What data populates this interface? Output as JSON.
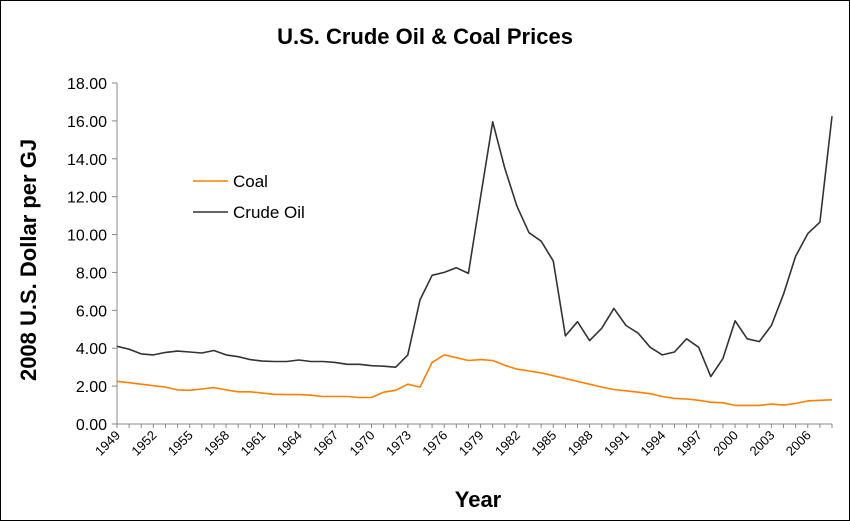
{
  "chart_data": {
    "type": "line",
    "title": "U.S. Crude Oil & Coal Prices",
    "xlabel": "Year",
    "ylabel": "2008 U.S. Dollar per GJ",
    "ylim": [
      0,
      18
    ],
    "yticks": [
      "0.00",
      "2.00",
      "4.00",
      "6.00",
      "8.00",
      "10.00",
      "12.00",
      "14.00",
      "16.00",
      "18.00"
    ],
    "xlim": [
      1949,
      2008
    ],
    "xticks": [
      "1949",
      "1952",
      "1955",
      "1958",
      "1961",
      "1964",
      "1967",
      "1970",
      "1973",
      "1976",
      "1979",
      "1982",
      "1985",
      "1988",
      "1991",
      "1994",
      "1997",
      "2000",
      "2003",
      "2006"
    ],
    "grid": false,
    "legend_position": "upper-left",
    "series": [
      {
        "name": "Coal",
        "color": "#ff8000",
        "x": [
          1949,
          1950,
          1951,
          1952,
          1953,
          1954,
          1955,
          1956,
          1957,
          1958,
          1959,
          1960,
          1961,
          1962,
          1963,
          1964,
          1965,
          1966,
          1967,
          1968,
          1969,
          1970,
          1971,
          1972,
          1973,
          1974,
          1975,
          1976,
          1977,
          1978,
          1979,
          1980,
          1981,
          1982,
          1983,
          1984,
          1985,
          1986,
          1987,
          1988,
          1989,
          1990,
          1991,
          1992,
          1993,
          1994,
          1995,
          1996,
          1997,
          1998,
          1999,
          2000,
          2001,
          2002,
          2003,
          2004,
          2005,
          2006,
          2007,
          2008
        ],
        "values": [
          2.25,
          2.18,
          2.1,
          2.02,
          1.95,
          1.8,
          1.78,
          1.85,
          1.92,
          1.8,
          1.7,
          1.7,
          1.63,
          1.57,
          1.55,
          1.55,
          1.52,
          1.45,
          1.45,
          1.45,
          1.4,
          1.4,
          1.68,
          1.78,
          2.1,
          1.95,
          3.25,
          3.65,
          3.5,
          3.35,
          3.4,
          3.35,
          3.1,
          2.9,
          2.8,
          2.7,
          2.55,
          2.4,
          2.25,
          2.1,
          1.95,
          1.82,
          1.75,
          1.68,
          1.6,
          1.45,
          1.35,
          1.32,
          1.25,
          1.15,
          1.12,
          0.98,
          0.98,
          0.98,
          1.05,
          1.0,
          1.08,
          1.22,
          1.25,
          1.28
        ]
      },
      {
        "name": "Crude Oil",
        "color": "#333333",
        "x": [
          1949,
          1950,
          1951,
          1952,
          1953,
          1954,
          1955,
          1956,
          1957,
          1958,
          1959,
          1960,
          1961,
          1962,
          1963,
          1964,
          1965,
          1966,
          1967,
          1968,
          1969,
          1970,
          1971,
          1972,
          1973,
          1974,
          1975,
          1976,
          1977,
          1978,
          1979,
          1980,
          1981,
          1982,
          1983,
          1984,
          1985,
          1986,
          1987,
          1988,
          1989,
          1990,
          1991,
          1992,
          1993,
          1994,
          1995,
          1996,
          1997,
          1998,
          1999,
          2000,
          2001,
          2002,
          2003,
          2004,
          2005,
          2006,
          2007,
          2008
        ],
        "values": [
          4.1,
          3.95,
          3.7,
          3.65,
          3.78,
          3.85,
          3.8,
          3.75,
          3.88,
          3.65,
          3.55,
          3.4,
          3.32,
          3.3,
          3.3,
          3.38,
          3.3,
          3.3,
          3.25,
          3.15,
          3.15,
          3.08,
          3.05,
          3.0,
          3.65,
          6.55,
          7.85,
          8.0,
          8.25,
          7.95,
          12.0,
          15.95,
          13.5,
          11.5,
          10.1,
          9.65,
          8.6,
          4.65,
          5.4,
          4.4,
          5.05,
          6.1,
          5.2,
          4.8,
          4.05,
          3.65,
          3.8,
          4.5,
          4.05,
          2.5,
          3.45,
          5.45,
          4.5,
          4.35,
          5.2,
          6.85,
          8.85,
          10.05,
          10.65,
          16.25
        ]
      }
    ]
  }
}
